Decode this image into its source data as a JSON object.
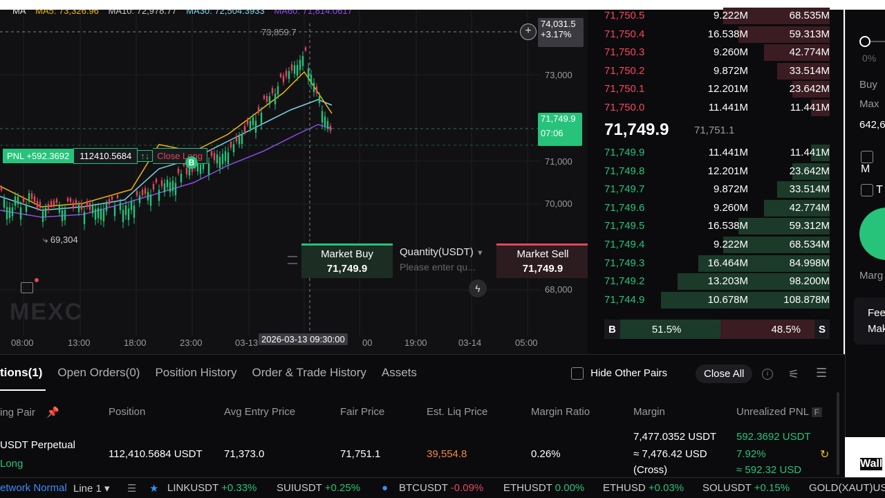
{
  "chart": {
    "ma_legend": [
      {
        "label": "MA",
        "color": "#e6e6e6"
      },
      {
        "label": "MA5: 73,326.96",
        "color": "#f0b90b"
      },
      {
        "label": "MA10: 72,978.77",
        "color": "#7ed5e8"
      },
      {
        "label": "MA30: 72,504.3933",
        "color": "#7ed5e8"
      },
      {
        "label": "MA60: 71,814.0617",
        "color": "#8f4de8"
      }
    ],
    "crosshair_price": "74,031.5",
    "crosshair_change": "+3.17%",
    "high_label": "73,859.7",
    "low_label": "69,304",
    "current_price": "71,749.9",
    "countdown": "07:06",
    "y_ticks": [
      "73,000",
      "71,000",
      "70,000",
      "68,000"
    ],
    "x_ticks": [
      "08:00",
      "13:00",
      "18:00",
      "23:00",
      "03-13",
      "19:00",
      "03-14",
      "05:00"
    ],
    "x_tick_partial": "00",
    "crosshair_time": "2026-03-13 09:30:00",
    "watermark": "MEXC",
    "buy_marker": "B",
    "position": {
      "pnl": "PNL +592.3692",
      "qty": "112410.5684",
      "arrows": "↑↓",
      "close": "Close Long"
    },
    "quick_trade": {
      "buy_label": "Market Buy",
      "buy_price": "71,749.9",
      "qty_label": "Quantity(USDT)",
      "qty_placeholder": "Please enter qu...",
      "sell_label": "Market Sell",
      "sell_price": "71,749.9"
    }
  },
  "orderbook": {
    "asks": [
      {
        "price": "71,750.5",
        "qty": "9.222M",
        "total": "68.535M",
        "depth": 0.63
      },
      {
        "price": "71,750.4",
        "qty": "16.538M",
        "total": "59.313M",
        "depth": 0.54
      },
      {
        "price": "71,750.3",
        "qty": "9.260M",
        "total": "42.774M",
        "depth": 0.39
      },
      {
        "price": "71,750.2",
        "qty": "9.872M",
        "total": "33.514M",
        "depth": 0.31
      },
      {
        "price": "71,750.1",
        "qty": "12.201M",
        "total": "23.642M",
        "depth": 0.22
      },
      {
        "price": "71,750.0",
        "qty": "11.441M",
        "total": "11.441M",
        "depth": 0.11
      }
    ],
    "mid_price": "71,749.9",
    "mark_price": "71,751.1",
    "bids": [
      {
        "price": "71,749.9",
        "qty": "11.441M",
        "total": "11.441M",
        "depth": 0.11
      },
      {
        "price": "71,749.8",
        "qty": "12.201M",
        "total": "23.642M",
        "depth": 0.22
      },
      {
        "price": "71,749.7",
        "qty": "9.872M",
        "total": "33.514M",
        "depth": 0.31
      },
      {
        "price": "71,749.6",
        "qty": "9.260M",
        "total": "42.774M",
        "depth": 0.39
      },
      {
        "price": "71,749.5",
        "qty": "16.538M",
        "total": "59.312M",
        "depth": 0.54
      },
      {
        "price": "71,749.4",
        "qty": "9.222M",
        "total": "68.534M",
        "depth": 0.63
      },
      {
        "price": "71,749.3",
        "qty": "16.464M",
        "total": "84.998M",
        "depth": 0.78
      },
      {
        "price": "71,749.2",
        "qty": "13.203M",
        "total": "98.200M",
        "depth": 0.9
      },
      {
        "price": "71,744.9",
        "qty": "10.678M",
        "total": "108.878M",
        "depth": 1.0
      }
    ],
    "buy_tag": "B",
    "buy_ratio": "51.5%",
    "sell_ratio": "48.5%",
    "sell_tag": "S"
  },
  "right_panel": {
    "pct": "0%",
    "buy": "Buy",
    "max": "Max",
    "value": "642,6",
    "m": "M",
    "t": "T",
    "marg": "Marg",
    "fee": "Fee",
    "mak": "Mak",
    "wall": "Wall"
  },
  "positions": {
    "tabs": [
      "tions(1)",
      "Open Orders(0)",
      "Position History",
      "Order & Trade History",
      "Assets"
    ],
    "hide_other": "Hide Other Pairs",
    "close_all": "Close All",
    "headers": [
      "ing Pair",
      "Position",
      "Avg Entry Price",
      "Fair Price",
      "Est. Liq Price",
      "Margin Ratio",
      "Margin",
      "Unrealized PNL"
    ],
    "f_badge": "F",
    "row": {
      "pair": "USDT  Perpetual",
      "side": "Long",
      "position": "112,410.5684 USDT",
      "avg_entry": "71,373.0",
      "fair": "71,751.1",
      "liq": "39,554.8",
      "margin_ratio": "0.26%",
      "margin1": "7,477.0352 USDT",
      "margin2": "≈ 7,476.42 USD",
      "margin3": "(Cross)",
      "pnl1": "592.3692 USDT",
      "pnl2": "7.92%",
      "pnl3": "≈ 592.32 USD"
    }
  },
  "ticker": {
    "network": "etwork Normal",
    "line": "Line 1",
    "items": [
      {
        "sym": "LINKUSDT",
        "chg": "+0.33%",
        "dir": "up"
      },
      {
        "sym": "SUIUSDT",
        "chg": "+0.25%",
        "dir": "up"
      },
      {
        "sym": "BTCUSDT",
        "chg": "-0.09%",
        "dir": "down"
      },
      {
        "sym": "ETHUSDT",
        "chg": "0.00%",
        "dir": "up"
      },
      {
        "sym": "ETHUSD",
        "chg": "+0.03%",
        "dir": "up"
      },
      {
        "sym": "SOLUSDT",
        "chg": "+0.15%",
        "dir": "up"
      },
      {
        "sym": "GOLD(XAUT)US",
        "chg": "",
        "dir": "up"
      }
    ]
  }
}
